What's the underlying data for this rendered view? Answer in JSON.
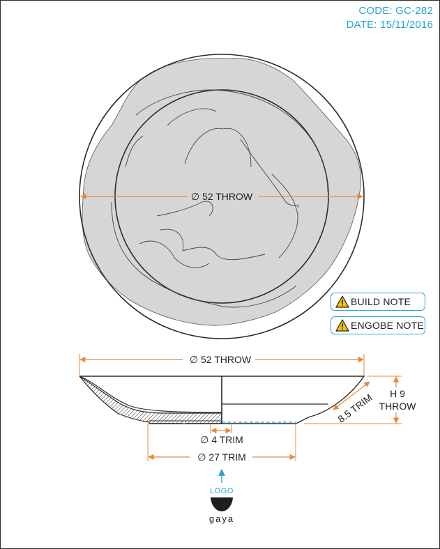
{
  "header": {
    "code": "CODE: GC-282",
    "date": "DATE: 15/11/2016"
  },
  "top_view": {
    "diameter_label": "∅ 52 THROW"
  },
  "notes": {
    "build_note": "BUILD NOTE",
    "engobe_note": "ENGOBE NOTE",
    "icon": "warning-icon"
  },
  "section_view": {
    "overall_diameter": "∅ 52 THROW",
    "height_prefix": "H 9",
    "height_suffix": "THROW",
    "wall": "8.5 TRIM",
    "inner_foot": "∅ 4 TRIM",
    "foot_diameter": "∅ 27 TRIM"
  },
  "logo": {
    "label": "LOGO",
    "brand": "gaya"
  },
  "colors": {
    "accent_blue": "#29a3d6",
    "dimension_orange": "#e8893a",
    "outline": "#2b2b2b",
    "glaze_fill": "#d6d6d6",
    "warning_yellow": "#f5c400"
  }
}
